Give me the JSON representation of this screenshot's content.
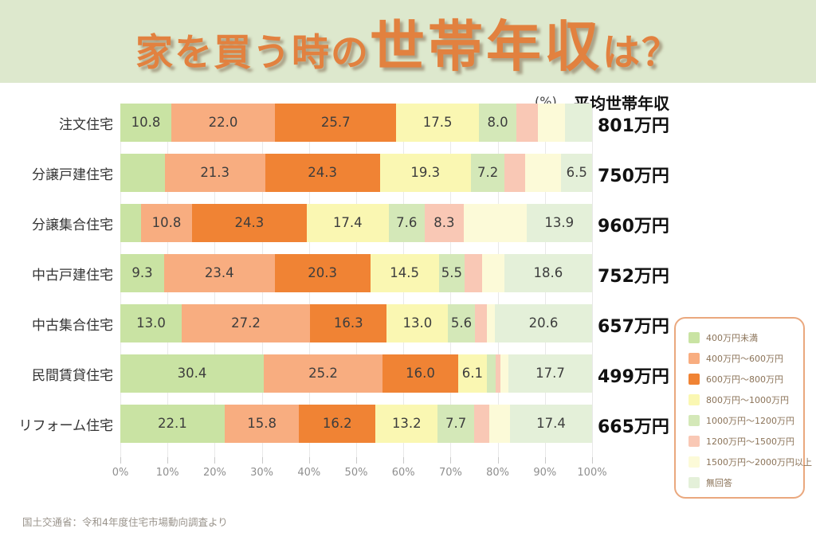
{
  "title": {
    "part1": "家を買う時の",
    "part2": "世帯年収",
    "part3": "は？"
  },
  "header": {
    "unit_label": "(%)",
    "avg_header": "平均世帯年収"
  },
  "footer": {
    "source": "国土交通省：令和4年度住宅市場動向調査より"
  },
  "colors": {
    "banner_bg": "#dde8cd",
    "title_orange": "#e2813f",
    "legend_border": "#eaa87e",
    "segment_palette": [
      "#c9e3a3",
      "#f8ad80",
      "#f08334",
      "#faf7b2",
      "#d4e8b8",
      "#f9c8b5",
      "#fcfad8",
      "#e4f0d9"
    ]
  },
  "chart_data": {
    "type": "bar",
    "orientation": "horizontal",
    "stacked": true,
    "unit": "%",
    "xlim": [
      0,
      100
    ],
    "grid": true,
    "x_ticks": [
      "0%",
      "10%",
      "20%",
      "30%",
      "40%",
      "50%",
      "60%",
      "70%",
      "80%",
      "90%",
      "100%"
    ],
    "legend_position": "right",
    "legend": [
      {
        "label": "400万円未満",
        "color": "#c9e3a3"
      },
      {
        "label": "400万円～600万円",
        "color": "#f8ad80"
      },
      {
        "label": "600万円～800万円",
        "color": "#f08334"
      },
      {
        "label": "800万円～1000万円",
        "color": "#faf7b2"
      },
      {
        "label": "1000万円～1200万円",
        "color": "#d4e8b8"
      },
      {
        "label": "1200万円～1500万円",
        "color": "#f9c8b5"
      },
      {
        "label": "1500万円～2000万円以上",
        "color": "#fcfad8"
      },
      {
        "label": "無回答",
        "color": "#e4f0d9"
      }
    ],
    "rows": [
      {
        "category": "注文住宅",
        "avg_income": "801万円",
        "values": [
          10.8,
          22.0,
          25.7,
          17.5,
          8.0,
          4.6,
          5.7,
          5.7
        ],
        "value_labels": [
          "10.8",
          "22.0",
          "25.7",
          "17.5",
          "8.0",
          null,
          null,
          null
        ]
      },
      {
        "category": "分譲戸建住宅",
        "avg_income": "750万円",
        "values": [
          9.4,
          21.3,
          24.3,
          19.3,
          7.2,
          4.3,
          7.7,
          6.5
        ],
        "value_labels": [
          null,
          "21.3",
          "24.3",
          "19.3",
          "7.2",
          null,
          null,
          "6.5"
        ]
      },
      {
        "category": "分譲集合住宅",
        "avg_income": "960万円",
        "values": [
          4.4,
          10.8,
          24.3,
          17.4,
          7.6,
          8.3,
          13.3,
          13.9
        ],
        "value_labels": [
          null,
          "10.8",
          "24.3",
          "17.4",
          "7.6",
          "8.3",
          null,
          "13.9"
        ]
      },
      {
        "category": "中古戸建住宅",
        "avg_income": "752万円",
        "values": [
          9.3,
          23.4,
          20.3,
          14.5,
          5.5,
          3.7,
          4.7,
          18.6
        ],
        "value_labels": [
          "9.3",
          "23.4",
          "20.3",
          "14.5",
          "5.5",
          null,
          null,
          "18.6"
        ]
      },
      {
        "category": "中古集合住宅",
        "avg_income": "657万円",
        "values": [
          13.0,
          27.2,
          16.3,
          13.0,
          5.6,
          2.6,
          1.7,
          20.6
        ],
        "value_labels": [
          "13.0",
          "27.2",
          "16.3",
          "13.0",
          "5.6",
          null,
          null,
          "20.6"
        ]
      },
      {
        "category": "民間賃貸住宅",
        "avg_income": "499万円",
        "values": [
          30.4,
          25.2,
          16.0,
          6.1,
          1.9,
          0.9,
          1.8,
          17.7
        ],
        "value_labels": [
          "30.4",
          "25.2",
          "16.0",
          "6.1",
          null,
          null,
          null,
          "17.7"
        ]
      },
      {
        "category": "リフォーム住宅",
        "avg_income": "665万円",
        "values": [
          22.1,
          15.8,
          16.2,
          13.2,
          7.7,
          3.2,
          4.4,
          17.4
        ],
        "value_labels": [
          "22.1",
          "15.8",
          "16.2",
          "13.2",
          "7.7",
          null,
          null,
          "17.4"
        ]
      }
    ]
  }
}
